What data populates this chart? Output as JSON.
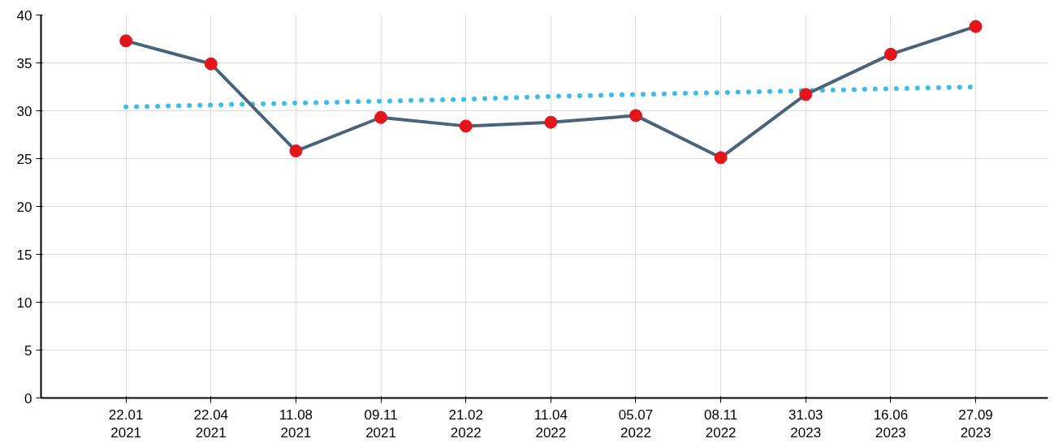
{
  "chart_data": {
    "type": "line",
    "categories": [
      "22.01\n2021",
      "22.04\n2021",
      "11.08\n2021",
      "09.11\n2021",
      "21.02\n2022",
      "11.04\n2022",
      "05.07\n2022",
      "08.11\n2022",
      "31.03\n2023",
      "16.06\n2023",
      "27.09\n2023"
    ],
    "series": [
      {
        "color": "#3bbde8",
        "line_style": "dotted",
        "marker": "none",
        "values": [
          30.4,
          30.6,
          30.8,
          31.0,
          31.2,
          31.5,
          31.7,
          31.9,
          32.1,
          32.3,
          32.5
        ]
      },
      {
        "color": "#4a6378",
        "colors": [
          "#e3151a",
          "#e3151a",
          "#e3151a",
          "#e3151a",
          "#e3151a",
          "#e3151a",
          "#e3151a",
          "#e3151a",
          "#e3151a",
          "#e3151a",
          "#e3151a"
        ],
        "marker": "circle",
        "line_style": "solid",
        "values": [
          37.3,
          34.9,
          25.8,
          29.3,
          28.4,
          28.8,
          29.5,
          25.1,
          31.7,
          35.9,
          38.8
        ]
      }
    ],
    "ylim": [
      0,
      40
    ],
    "yticks": [
      0,
      5,
      10,
      15,
      20,
      25,
      30,
      35,
      40
    ],
    "grid": true
  }
}
